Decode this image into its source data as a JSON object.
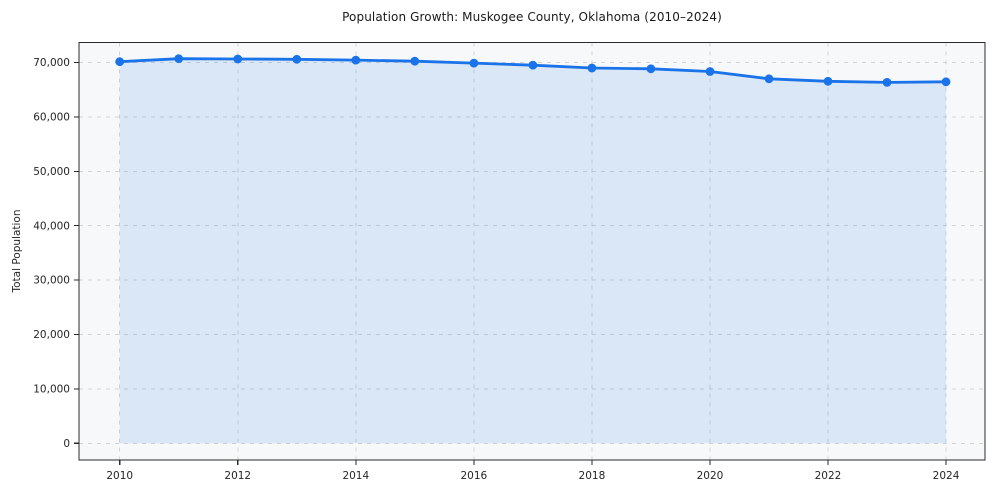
{
  "chart_data": {
    "type": "area",
    "title": "Population Growth: Muskogee County, Oklahoma (2010–2024)",
    "xlabel": "",
    "ylabel": "Total Population",
    "x": [
      2010,
      2011,
      2012,
      2013,
      2014,
      2015,
      2016,
      2017,
      2018,
      2019,
      2020,
      2021,
      2022,
      2023,
      2024
    ],
    "values": [
      70150,
      70700,
      70650,
      70600,
      70450,
      70250,
      69900,
      69500,
      69000,
      68850,
      68350,
      67000,
      66550,
      66350,
      66450
    ],
    "x_ticks": [
      2010,
      2012,
      2014,
      2016,
      2018,
      2020,
      2022,
      2024
    ],
    "x_tick_labels": [
      "2010",
      "2012",
      "2014",
      "2016",
      "2018",
      "2020",
      "2022",
      "2024"
    ],
    "y_ticks": [
      0,
      10000,
      20000,
      30000,
      40000,
      50000,
      60000,
      70000
    ],
    "y_tick_labels": [
      "0",
      "10,000",
      "20,000",
      "30,000",
      "40,000",
      "50,000",
      "60,000",
      "70,000"
    ],
    "xlim": [
      2009.31,
      2024.66
    ],
    "ylim": [
      -3075,
      73680
    ],
    "grid": true,
    "grid_style": "dashed",
    "legend": false,
    "marker": "circle",
    "colors": {
      "line": "#1a73e8",
      "marker": "#1a73e8",
      "fill": "rgba(26,115,232,0.13)",
      "plot_background": "#f7f8fa",
      "figure_background": "#ffffff",
      "grid": "#d4d4d4",
      "spine": "#2a2a2a",
      "tick_label": "#262626"
    }
  }
}
